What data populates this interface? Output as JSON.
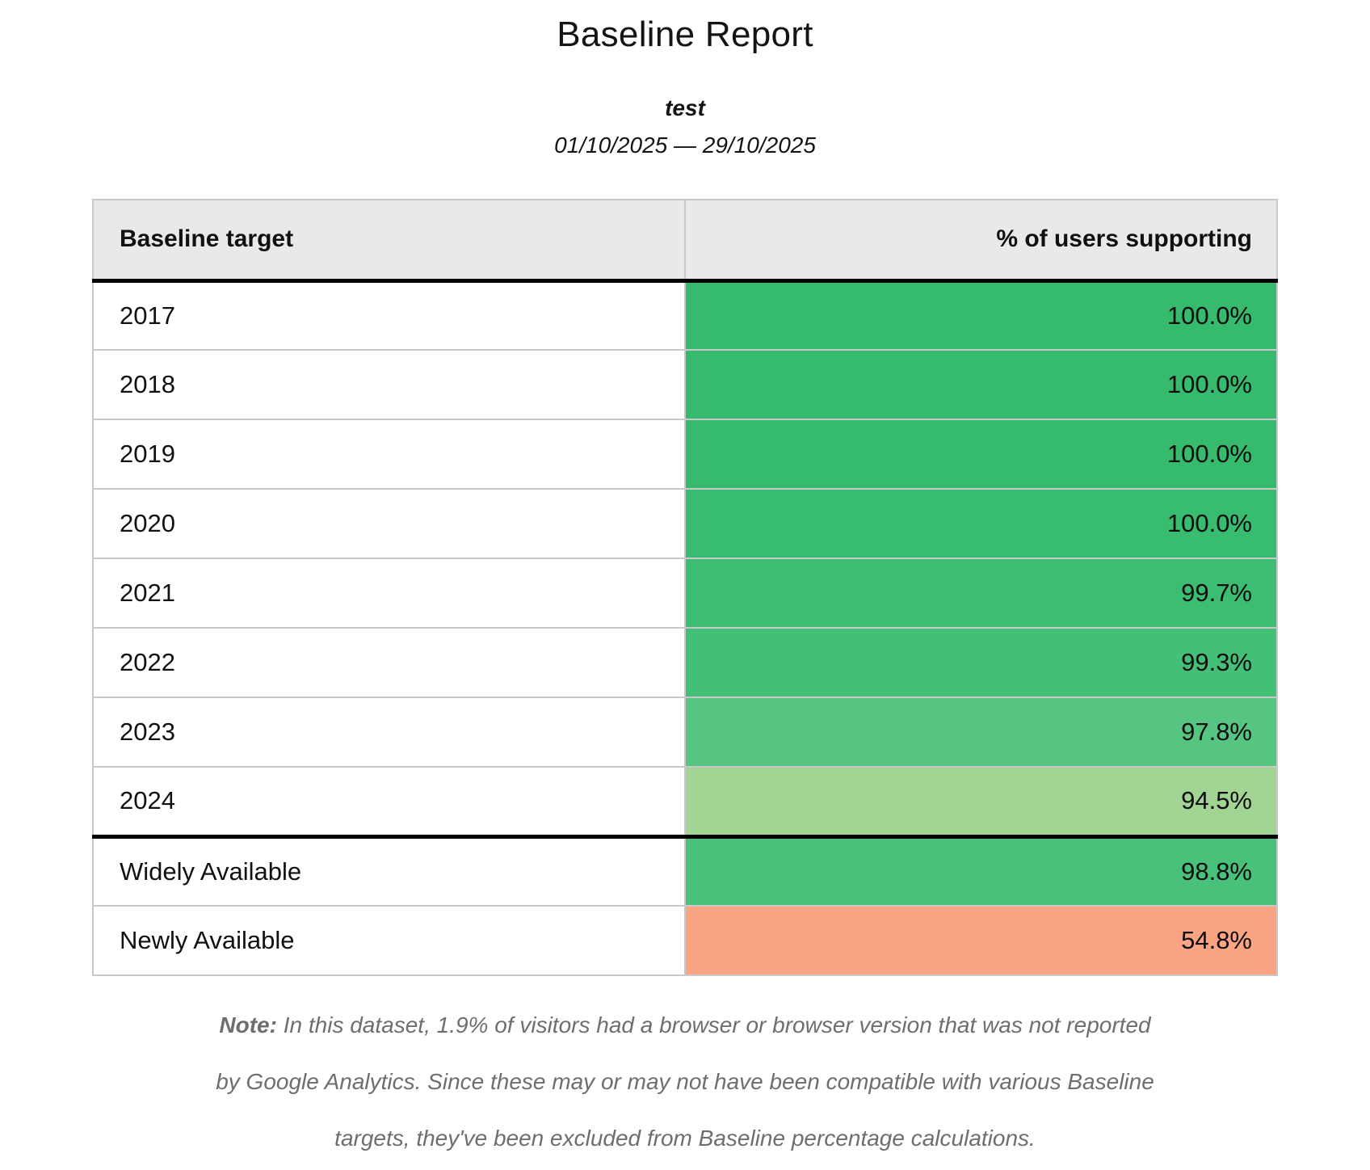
{
  "page": {
    "title": "Baseline Report",
    "subtitle": "test",
    "date_range": "01/10/2025 — 29/10/2025"
  },
  "table": {
    "headers": [
      "Baseline target",
      "% of users supporting"
    ],
    "rows": [
      {
        "target": "2017",
        "percent": "100.0%",
        "color": "#36bb6e",
        "separator_above": false
      },
      {
        "target": "2018",
        "percent": "100.0%",
        "color": "#36bb6e",
        "separator_above": false
      },
      {
        "target": "2019",
        "percent": "100.0%",
        "color": "#36bb6e",
        "separator_above": false
      },
      {
        "target": "2020",
        "percent": "100.0%",
        "color": "#38bc70",
        "separator_above": false
      },
      {
        "target": "2021",
        "percent": "99.7%",
        "color": "#3dbd73",
        "separator_above": false
      },
      {
        "target": "2022",
        "percent": "99.3%",
        "color": "#44bf77",
        "separator_above": false
      },
      {
        "target": "2023",
        "percent": "97.8%",
        "color": "#56c581",
        "separator_above": false
      },
      {
        "target": "2024",
        "percent": "94.5%",
        "color": "#a2d593",
        "separator_above": false
      },
      {
        "target": "Widely Available",
        "percent": "98.8%",
        "color": "#48c17a",
        "separator_above": true
      },
      {
        "target": "Newly Available",
        "percent": "54.8%",
        "color": "#fba484",
        "separator_above": false
      }
    ]
  },
  "note": {
    "label": "Note:",
    "text": "In this dataset, 1.9% of visitors had a browser or browser version that was not reported by Google Analytics. Since these may or may not have been compatible with various Baseline targets, they've been excluded from Baseline percentage calculations."
  },
  "colors": {
    "header_background": "#e9e9e9",
    "grid_line": "#c9c9c9",
    "heavy_rule": "#000000",
    "note_text": "#6e6e6e"
  },
  "chart_data": {
    "type": "table",
    "title": "Baseline Report",
    "subtitle": "test",
    "date_range": "01/10/2025 — 29/10/2025",
    "columns": [
      "Baseline target",
      "% of users supporting"
    ],
    "categories": [
      "2017",
      "2018",
      "2019",
      "2020",
      "2021",
      "2022",
      "2023",
      "2024",
      "Widely Available",
      "Newly Available"
    ],
    "values": [
      100.0,
      100.0,
      100.0,
      100.0,
      99.7,
      99.3,
      97.8,
      94.5,
      98.8,
      54.8
    ],
    "value_unit": "%",
    "cell_colors": [
      "#36bb6e",
      "#36bb6e",
      "#36bb6e",
      "#38bc70",
      "#3dbd73",
      "#44bf77",
      "#56c581",
      "#a2d593",
      "#48c17a",
      "#fba484"
    ],
    "note": "In this dataset, 1.9% of visitors had a browser or browser version that was not reported by Google Analytics. Since these may or may not have been compatible with various Baseline targets, they've been excluded from Baseline percentage calculations."
  }
}
